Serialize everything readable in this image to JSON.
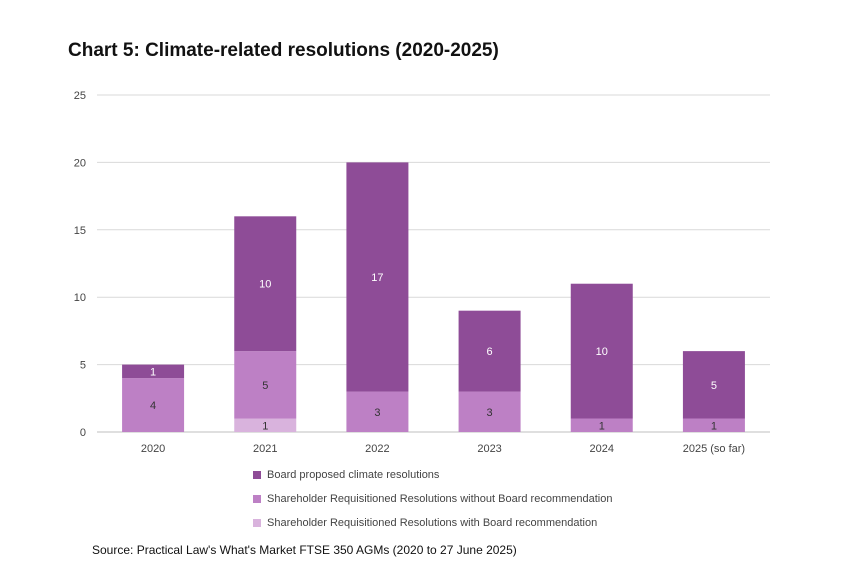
{
  "chart_data": {
    "type": "bar",
    "stacked": true,
    "title": "Chart 5: Climate-related resolutions (2020-2025)",
    "categories": [
      "2020",
      "2021",
      "2022",
      "2023",
      "2024",
      "2025 (so far)"
    ],
    "series": [
      {
        "name": "Shareholder Requisitioned Resolutions with Board recommendation",
        "values": [
          0,
          1,
          0,
          0,
          0,
          0
        ],
        "color": "#d9b3dd",
        "label_color": "#333333"
      },
      {
        "name": "Shareholder Requisitioned Resolutions without Board recommendation",
        "values": [
          4,
          5,
          3,
          3,
          1,
          1
        ],
        "color": "#bd80c5",
        "label_color": "#333333"
      },
      {
        "name": "Board proposed climate resolutions",
        "values": [
          1,
          10,
          17,
          6,
          10,
          5
        ],
        "color": "#8e4c97",
        "label_color": "#ffffff"
      }
    ],
    "legend_order": [
      2,
      1,
      0
    ],
    "ylim": [
      0,
      25
    ],
    "yticks": [
      0,
      5,
      10,
      15,
      20,
      25
    ],
    "grid": true,
    "legend_position": "bottom"
  },
  "source_note": "Source: Practical Law's What's Market FTSE 350 AGMs (2020 to 27 June 2025)"
}
